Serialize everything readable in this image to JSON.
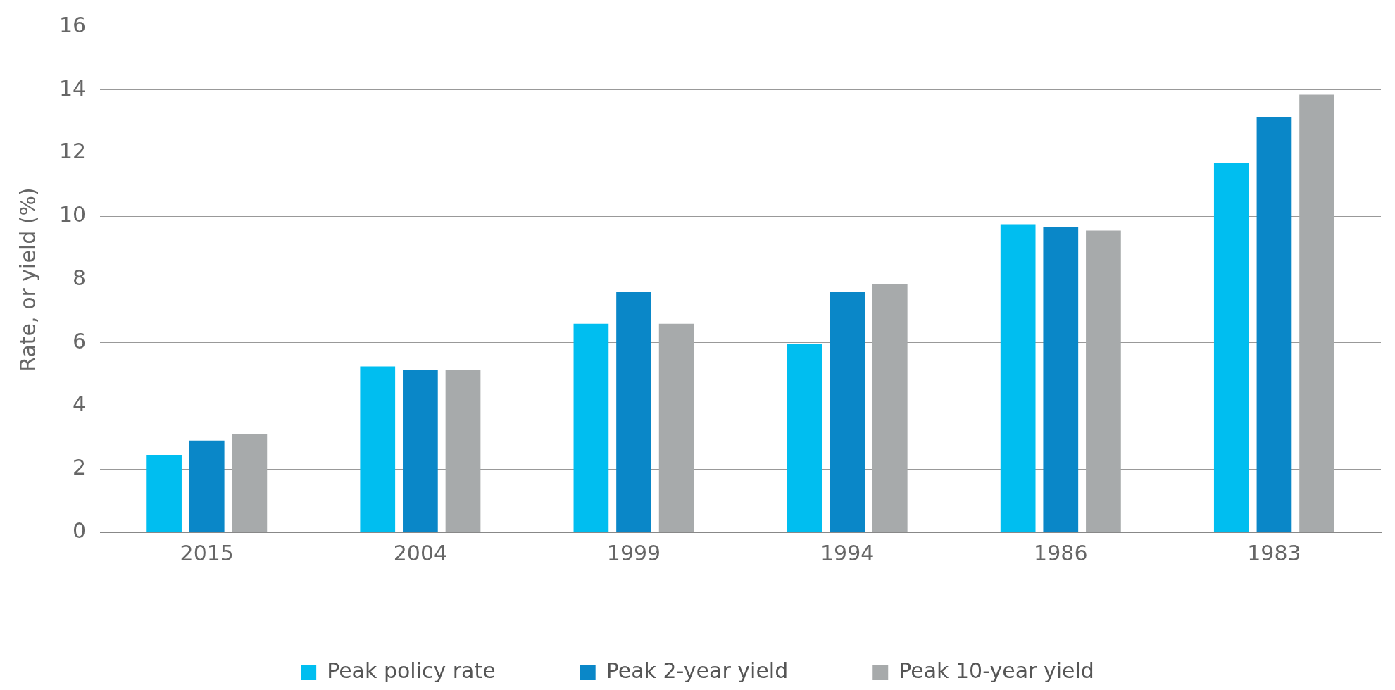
{
  "chart_data": {
    "type": "bar",
    "ylabel": "Rate, or yield (%)",
    "categories": [
      "2015",
      "2004",
      "1999",
      "1994",
      "1986",
      "1983"
    ],
    "series": [
      {
        "name": "Peak policy rate",
        "color": "#00bef0",
        "values": [
          2.45,
          5.25,
          6.6,
          5.95,
          9.75,
          11.7
        ]
      },
      {
        "name": "Peak 2-year yield",
        "color": "#0a87c8",
        "values": [
          2.9,
          5.15,
          7.6,
          7.6,
          9.65,
          13.15
        ]
      },
      {
        "name": "Peak 10-year yield",
        "color": "#a7aaab",
        "values": [
          3.1,
          5.15,
          6.6,
          7.85,
          9.55,
          13.85
        ]
      }
    ],
    "ylim": [
      0,
      16
    ],
    "yticks": [
      0,
      2,
      4,
      6,
      8,
      10,
      12,
      14,
      16
    ],
    "grid": "y",
    "legend": "bottom"
  }
}
